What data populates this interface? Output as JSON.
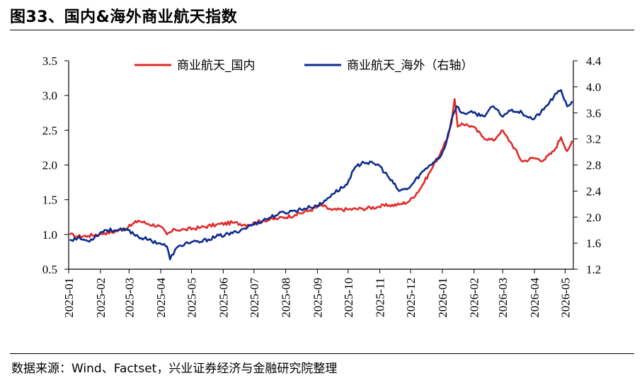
{
  "title": "图33、国内&海外商业航天指数",
  "source": "数据来源：Wind、Factset，兴业证券经济与金融研究院整理",
  "chart_data": {
    "type": "line",
    "title": "图33、国内&海外商业航天指数",
    "xlabel": "",
    "ylabel": "",
    "y2label": "",
    "ylim": [
      0.5,
      3.5
    ],
    "y2lim": [
      1.2,
      4.4
    ],
    "yticks": [
      "0.5",
      "1.0",
      "1.5",
      "2.0",
      "2.5",
      "3.0",
      "3.5"
    ],
    "y2ticks": [
      "1.2",
      "1.6",
      "2.0",
      "2.4",
      "2.8",
      "3.2",
      "3.6",
      "4.0",
      "4.4"
    ],
    "xticks": [
      "2025-01",
      "2025-02",
      "2025-03",
      "2025-04",
      "2025-05",
      "2025-06",
      "2025-07",
      "2025-08",
      "2025-09",
      "2025-10",
      "2025-11",
      "2025-12",
      "2026-01",
      "2026-02",
      "2026-03",
      "2026-04",
      "2026-05"
    ],
    "legend_position": "top",
    "grid": false,
    "series": [
      {
        "name": "商业航天_国内",
        "axis": "left",
        "color": "#e02b2b",
        "x": [
          "2025-01-02",
          "2025-01-10",
          "2025-01-20",
          "2025-02-05",
          "2025-02-15",
          "2025-02-28",
          "2025-03-10",
          "2025-03-20",
          "2025-03-31",
          "2025-04-07",
          "2025-04-15",
          "2025-04-25",
          "2025-05-10",
          "2025-05-25",
          "2025-06-10",
          "2025-06-25",
          "2025-07-10",
          "2025-07-25",
          "2025-08-10",
          "2025-08-25",
          "2025-09-05",
          "2025-09-15",
          "2025-09-30",
          "2025-10-15",
          "2025-10-31",
          "2025-11-10",
          "2025-11-20",
          "2025-11-30",
          "2025-12-10",
          "2025-12-20",
          "2025-12-31",
          "2026-01-05",
          "2026-01-10",
          "2026-01-13",
          "2026-01-16",
          "2026-01-20",
          "2026-01-31",
          "2026-02-10",
          "2026-02-20",
          "2026-02-28",
          "2026-03-10",
          "2026-03-20",
          "2026-03-31",
          "2026-04-10",
          "2026-04-20",
          "2026-04-27",
          "2026-05-03",
          "2026-05-08"
        ],
        "values": [
          1.0,
          0.97,
          0.98,
          1.02,
          1.04,
          1.1,
          1.2,
          1.15,
          1.12,
          1.0,
          1.07,
          1.07,
          1.1,
          1.14,
          1.17,
          1.14,
          1.2,
          1.23,
          1.28,
          1.35,
          1.42,
          1.35,
          1.36,
          1.37,
          1.4,
          1.42,
          1.43,
          1.48,
          1.65,
          1.9,
          2.2,
          2.35,
          2.6,
          2.95,
          2.55,
          2.6,
          2.55,
          2.4,
          2.35,
          2.5,
          2.3,
          2.05,
          2.1,
          2.07,
          2.2,
          2.4,
          2.2,
          2.35
        ]
      },
      {
        "name": "商业航天_海外（右轴）",
        "axis": "right",
        "color": "#0d2c8c",
        "x": [
          "2025-01-02",
          "2025-01-10",
          "2025-01-20",
          "2025-02-05",
          "2025-02-15",
          "2025-02-28",
          "2025-03-10",
          "2025-03-20",
          "2025-03-31",
          "2025-04-07",
          "2025-04-10",
          "2025-04-15",
          "2025-04-25",
          "2025-05-10",
          "2025-05-25",
          "2025-06-10",
          "2025-06-25",
          "2025-07-10",
          "2025-07-25",
          "2025-08-10",
          "2025-08-25",
          "2025-09-05",
          "2025-09-15",
          "2025-09-30",
          "2025-10-05",
          "2025-10-15",
          "2025-10-31",
          "2025-11-10",
          "2025-11-20",
          "2025-11-30",
          "2025-12-10",
          "2025-12-20",
          "2025-12-31",
          "2026-01-05",
          "2026-01-10",
          "2026-01-15",
          "2026-01-20",
          "2026-01-31",
          "2026-02-10",
          "2026-02-20",
          "2026-02-28",
          "2026-03-10",
          "2026-03-20",
          "2026-03-31",
          "2026-04-10",
          "2026-04-20",
          "2026-04-27",
          "2026-05-03",
          "2026-05-08"
        ],
        "values": [
          1.65,
          1.68,
          1.63,
          1.8,
          1.8,
          1.8,
          1.7,
          1.65,
          1.6,
          1.55,
          1.35,
          1.5,
          1.6,
          1.62,
          1.7,
          1.75,
          1.85,
          1.95,
          2.05,
          2.1,
          2.15,
          2.2,
          2.35,
          2.5,
          2.7,
          2.85,
          2.8,
          2.6,
          2.4,
          2.45,
          2.65,
          2.8,
          2.95,
          3.15,
          3.5,
          3.7,
          3.6,
          3.6,
          3.55,
          3.7,
          3.55,
          3.65,
          3.6,
          3.5,
          3.65,
          3.85,
          3.95,
          3.7,
          3.78
        ]
      }
    ]
  }
}
